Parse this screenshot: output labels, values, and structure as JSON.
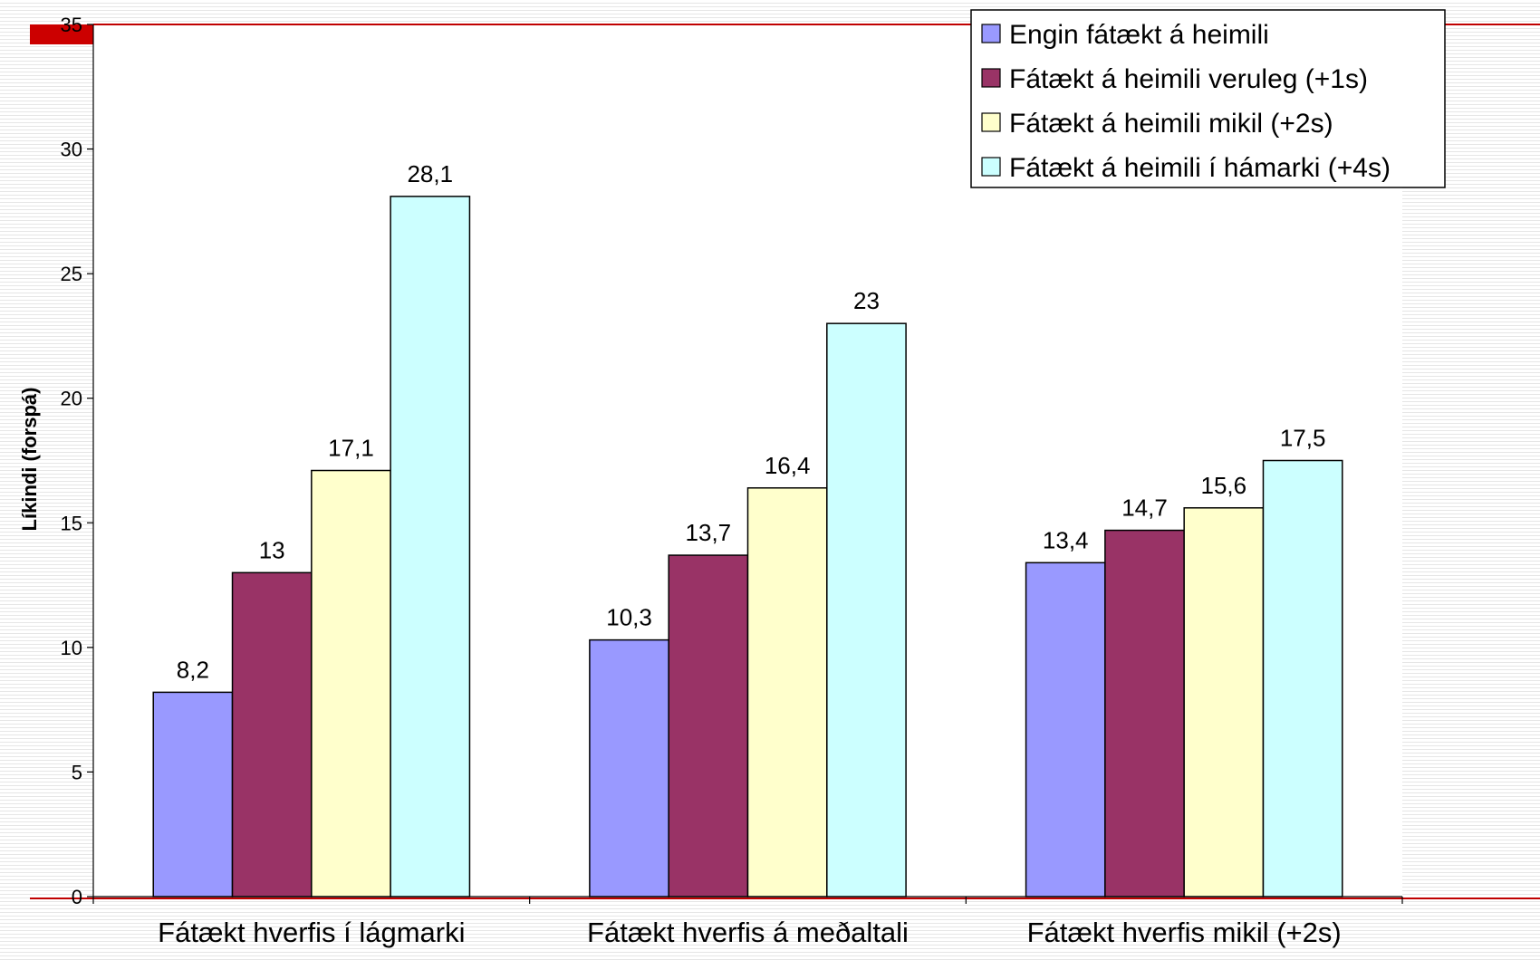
{
  "chart_data": {
    "type": "bar",
    "title": "",
    "xlabel": "",
    "ylabel": "Líkindi (forspá)",
    "ylim": [
      0,
      35
    ],
    "yticks": [
      0,
      5,
      10,
      15,
      20,
      25,
      30,
      35
    ],
    "grid": false,
    "legend_position": "top-right",
    "categories": [
      "Fátækt hverfis í lágmarki",
      "Fátækt hverfis á meðaltali",
      "Fátækt hverfis mikil (+2s)"
    ],
    "series": [
      {
        "name": "Engin fátækt á heimili",
        "values": [
          8.2,
          10.3,
          13.4
        ],
        "labels": [
          "8,2",
          "10,3",
          "13,4"
        ],
        "color": "#9999ff"
      },
      {
        "name": "Fátækt á heimili veruleg (+1s)",
        "values": [
          13,
          13.7,
          14.7
        ],
        "labels": [
          "13",
          "13,7",
          "14,7"
        ],
        "color": "#993366"
      },
      {
        "name": "Fátækt á heimili mikil (+2s)",
        "values": [
          17.1,
          16.4,
          15.6
        ],
        "labels": [
          "17,1",
          "16,4",
          "15,6"
        ],
        "color": "#ffffcc"
      },
      {
        "name": "Fátækt á heimili í hámarki (+4s)",
        "values": [
          28.1,
          23,
          17.5
        ],
        "labels": [
          "28,1",
          "23",
          "17,5"
        ],
        "color": "#ccffff"
      }
    ]
  }
}
